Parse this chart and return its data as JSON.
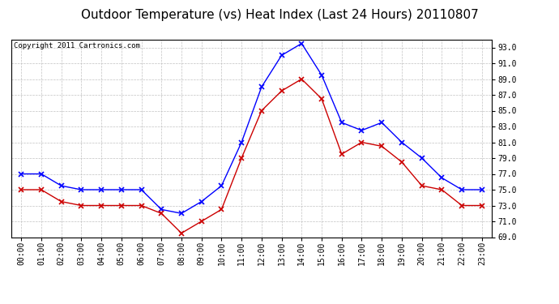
{
  "title": "Outdoor Temperature (vs) Heat Index (Last 24 Hours) 20110807",
  "copyright": "Copyright 2011 Cartronics.com",
  "x_labels": [
    "00:00",
    "01:00",
    "02:00",
    "03:00",
    "04:00",
    "05:00",
    "06:00",
    "07:00",
    "08:00",
    "09:00",
    "10:00",
    "11:00",
    "12:00",
    "13:00",
    "14:00",
    "15:00",
    "16:00",
    "17:00",
    "18:00",
    "19:00",
    "20:00",
    "21:00",
    "22:00",
    "23:00"
  ],
  "blue_data": [
    77.0,
    77.0,
    75.5,
    75.0,
    75.0,
    75.0,
    75.0,
    72.5,
    72.0,
    73.5,
    75.5,
    81.0,
    88.0,
    92.0,
    93.5,
    89.5,
    83.5,
    82.5,
    83.5,
    81.0,
    79.0,
    76.5,
    75.0,
    75.0
  ],
  "red_data": [
    75.0,
    75.0,
    73.5,
    73.0,
    73.0,
    73.0,
    73.0,
    72.0,
    69.5,
    71.0,
    72.5,
    79.0,
    85.0,
    87.5,
    89.0,
    86.5,
    79.5,
    81.0,
    80.5,
    78.5,
    75.5,
    75.0,
    73.0,
    73.0
  ],
  "blue_color": "#0000ff",
  "red_color": "#cc0000",
  "ylim": [
    69.0,
    94.0
  ],
  "yticks": [
    69.0,
    71.0,
    73.0,
    75.0,
    77.0,
    79.0,
    81.0,
    83.0,
    85.0,
    87.0,
    89.0,
    91.0,
    93.0
  ],
  "background_color": "#ffffff",
  "grid_color": "#bbbbbb",
  "title_fontsize": 11,
  "copyright_fontsize": 6.5,
  "tick_fontsize": 7
}
